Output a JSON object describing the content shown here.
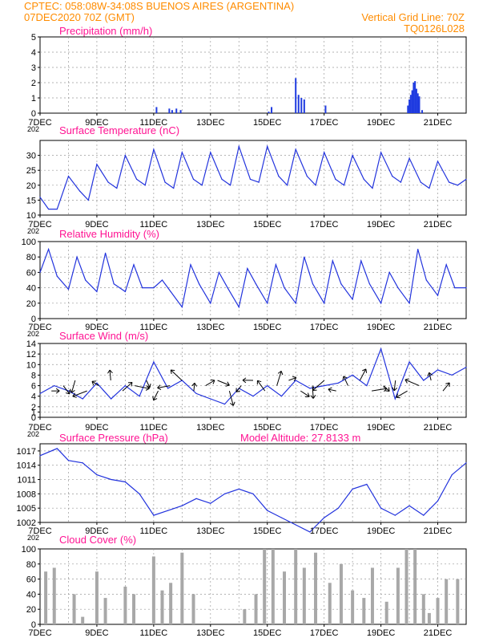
{
  "header": {
    "left_line1": "CPTEC:  058:08W-34:08S  BUENOS AIRES (ARGENTINA)",
    "left_line2": "07DEC2020 70Z (GMT)",
    "right_line2": "Vertical Grid Line: 70Z",
    "right_line3": "TQ0126L028"
  },
  "year_fragment": "202",
  "colors": {
    "title": "#ff1493",
    "header": "#ff8c00",
    "line": "#2233dd",
    "bar": "#1f3be0",
    "cloud": "#a8a8a8",
    "arrow": "#000000",
    "grid": "#9a9a9a"
  },
  "x_axis": {
    "start": "07DEC2020",
    "end": "22DEC2020",
    "tick_labels": [
      "7DEC",
      "9DEC",
      "11DEC",
      "13DEC",
      "15DEC",
      "17DEC",
      "19DEC",
      "21DEC"
    ],
    "tick_days": [
      0,
      2,
      4,
      6,
      8,
      10,
      12,
      14
    ],
    "minor_grid_every_days": 1
  },
  "chart_data": [
    {
      "type": "bar",
      "title": "Precipitation (mm/h)",
      "ylim": [
        0,
        5
      ],
      "yticks": [
        "0",
        "1",
        "2",
        "3",
        "4",
        "5"
      ],
      "grid": true,
      "x_unit": "days since 07DEC2020 (axis printed as dates)",
      "x": [
        4.1,
        4.55,
        4.65,
        4.8,
        4.95,
        8.05,
        8.15,
        9.0,
        9.1,
        9.2,
        9.3,
        10.05,
        12.95,
        13.0,
        13.05,
        13.1,
        13.15,
        13.2,
        13.25,
        13.3,
        13.35,
        13.45
      ],
      "values": [
        0.4,
        0.3,
        0.2,
        0.3,
        0.2,
        0.1,
        0.4,
        2.3,
        1.2,
        1.0,
        0.9,
        0.5,
        0.5,
        0.9,
        1.2,
        1.5,
        2.0,
        2.1,
        1.6,
        1.3,
        1.1,
        0.2
      ]
    },
    {
      "type": "line",
      "title": "Surface Temperature (nC)",
      "ylim": [
        10,
        35
      ],
      "yticks": [
        "10",
        "15",
        "20",
        "25",
        "30"
      ],
      "grid": true,
      "x": [
        0,
        0.3,
        0.6,
        1.0,
        1.4,
        1.7,
        2.0,
        2.4,
        2.7,
        3.0,
        3.4,
        3.7,
        4.0,
        4.4,
        4.7,
        5.0,
        5.4,
        5.7,
        6.0,
        6.4,
        6.7,
        7.0,
        7.4,
        7.7,
        8.0,
        8.4,
        8.7,
        9.0,
        9.4,
        9.7,
        10.0,
        10.4,
        10.7,
        11.0,
        11.4,
        11.7,
        12.0,
        12.4,
        12.7,
        13.0,
        13.4,
        13.7,
        14.0,
        14.4,
        14.7,
        15.0
      ],
      "values": [
        16,
        12,
        12,
        23,
        18,
        15,
        27,
        21,
        19,
        30,
        22,
        20,
        32,
        21,
        19,
        31,
        22,
        20,
        31,
        22,
        20,
        33,
        22,
        21,
        33,
        23,
        20,
        32,
        23,
        20,
        31,
        22,
        20,
        30,
        22,
        19,
        31,
        23,
        21,
        29,
        21,
        19,
        28,
        21,
        20,
        22
      ]
    },
    {
      "type": "line",
      "title": "Relative Humidity (%)",
      "ylim": [
        0,
        100
      ],
      "yticks": [
        "0",
        "20",
        "40",
        "60",
        "80",
        "100"
      ],
      "grid": true,
      "x": [
        0,
        0.3,
        0.6,
        1.0,
        1.3,
        1.6,
        2.0,
        2.3,
        2.6,
        3.0,
        3.3,
        3.6,
        4.0,
        4.3,
        4.6,
        5.0,
        5.3,
        5.6,
        6.0,
        6.3,
        6.6,
        7.0,
        7.3,
        7.6,
        8.0,
        8.3,
        8.6,
        9.0,
        9.3,
        9.6,
        10.0,
        10.3,
        10.6,
        11.0,
        11.3,
        11.6,
        12.0,
        12.3,
        12.6,
        13.0,
        13.3,
        13.6,
        14.0,
        14.3,
        14.6,
        15.0
      ],
      "values": [
        60,
        90,
        55,
        38,
        80,
        50,
        35,
        85,
        45,
        35,
        70,
        40,
        40,
        50,
        35,
        15,
        70,
        45,
        20,
        60,
        40,
        15,
        65,
        45,
        20,
        70,
        40,
        20,
        80,
        45,
        20,
        75,
        45,
        25,
        75,
        45,
        20,
        60,
        40,
        20,
        90,
        50,
        30,
        70,
        40,
        40
      ]
    },
    {
      "type": "line",
      "title": "Surface Wind (m/s)",
      "ylim": [
        0,
        14
      ],
      "yticks": [
        "0",
        "1",
        "2",
        "4",
        "6",
        "8",
        "10",
        "12",
        "14"
      ],
      "grid": true,
      "x": [
        0,
        0.5,
        1.0,
        1.5,
        2.0,
        2.5,
        3.0,
        3.5,
        4.0,
        4.5,
        5.0,
        5.5,
        6.0,
        6.5,
        7.0,
        7.5,
        8.0,
        8.5,
        9.0,
        9.5,
        10.0,
        10.5,
        11.0,
        11.5,
        12.0,
        12.5,
        13.0,
        13.5,
        14.0,
        14.5,
        15.0
      ],
      "values": [
        4.5,
        6.0,
        5.0,
        3.5,
        6.5,
        3.5,
        6.0,
        4.0,
        10.5,
        5.5,
        7.0,
        4.5,
        3.5,
        2.5,
        5.5,
        4.0,
        6.0,
        4.0,
        7.0,
        5.5,
        6.0,
        6.5,
        8.0,
        6.0,
        13.0,
        3.5,
        10.5,
        7.0,
        9.0,
        8.0,
        9.5
      ],
      "wind_arrows_count": 34
    },
    {
      "type": "line",
      "title": "Surface Pressure (hPa)",
      "annotation": "Model Altitude: 27.8133 m",
      "ylim": [
        1002,
        1018.5
      ],
      "yticks": [
        "1002",
        "1005",
        "1008",
        "1011",
        "1014",
        "1017"
      ],
      "grid": true,
      "x": [
        0,
        0.6,
        1.0,
        1.5,
        2.0,
        2.5,
        3.0,
        3.5,
        4.0,
        4.5,
        5.0,
        5.5,
        6.0,
        6.5,
        7.0,
        7.5,
        8.0,
        8.5,
        9.0,
        9.5,
        10.0,
        10.5,
        11.0,
        11.5,
        12.0,
        12.5,
        13.0,
        13.5,
        14.0,
        14.5,
        15.0
      ],
      "values": [
        1016,
        1017.5,
        1015,
        1014.5,
        1012,
        1011,
        1010.5,
        1008,
        1003.5,
        1004.5,
        1005.5,
        1007,
        1006,
        1008,
        1009,
        1008,
        1004.5,
        1003,
        1001.5,
        1000,
        1003,
        1005,
        1009,
        1010,
        1005,
        1003.5,
        1005.5,
        1003.5,
        1006.5,
        1012,
        1014.5
      ]
    },
    {
      "type": "area",
      "title": "Cloud Cover (%)",
      "ylim": [
        0,
        100
      ],
      "yticks": [
        "0",
        "20",
        "40",
        "60",
        "80",
        "100"
      ],
      "grid": true,
      "x": [
        0.2,
        0.5,
        1.2,
        1.5,
        2.0,
        2.3,
        3.0,
        3.3,
        4.0,
        4.3,
        4.6,
        5.0,
        5.4,
        7.2,
        7.6,
        7.9,
        8.2,
        8.6,
        9.0,
        9.3,
        9.7,
        10.2,
        10.6,
        11.0,
        11.4,
        11.7,
        12.2,
        12.6,
        12.9,
        13.2,
        13.5,
        13.7,
        14.0,
        14.3,
        14.7
      ],
      "values": [
        70,
        75,
        40,
        10,
        70,
        35,
        50,
        40,
        90,
        45,
        55,
        95,
        40,
        20,
        40,
        100,
        100,
        70,
        100,
        75,
        95,
        55,
        80,
        45,
        35,
        75,
        30,
        75,
        100,
        100,
        40,
        15,
        35,
        60,
        60
      ]
    }
  ]
}
